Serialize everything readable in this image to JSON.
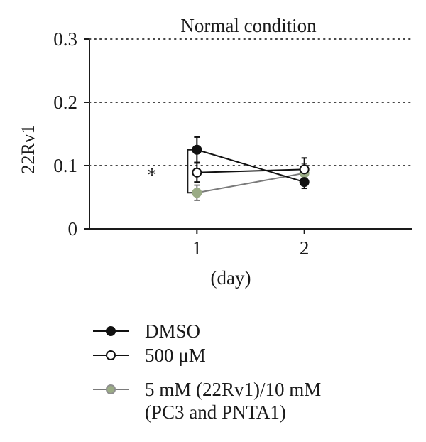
{
  "chart_data": {
    "type": "line",
    "title": "Normal condition",
    "xlabel": "(day)",
    "ylabel": "22Rv1",
    "x": [
      1,
      2
    ],
    "x_ticks": [
      "1",
      "2"
    ],
    "xlim": [
      0,
      3
    ],
    "ylim": [
      0,
      0.3
    ],
    "y_ticks": [
      "0",
      "0.1",
      "0.2",
      "0.3"
    ],
    "y_tick_values": [
      0,
      0.1,
      0.2,
      0.3
    ],
    "grid": "dotted horizontal",
    "legend_position": "bottom",
    "annotation": "*",
    "series": [
      {
        "name": "DMSO",
        "values": [
          0.125,
          0.074
        ],
        "errors": [
          0.02,
          0.01
        ],
        "color": "#111111",
        "marker_fill": "#111111"
      },
      {
        "name": "500 μM",
        "values": [
          0.089,
          0.094
        ],
        "errors": [
          0.015,
          0.018
        ],
        "color": "#111111",
        "marker_fill": "#ffffff"
      },
      {
        "name": "5 mM (22Rv1)/10 mM (PC3 and PNTA1)",
        "values": [
          0.057,
          0.088
        ],
        "errors": [
          0.012,
          0.015
        ],
        "color": "#7a7a7a",
        "marker_fill": "#9aab85"
      }
    ],
    "legend_lines": [
      [
        "DMSO"
      ],
      [
        "500 μM"
      ],
      [
        "5 mM (22Rv1)/10 mM",
        "(PC3 and PNTA1)"
      ]
    ]
  }
}
